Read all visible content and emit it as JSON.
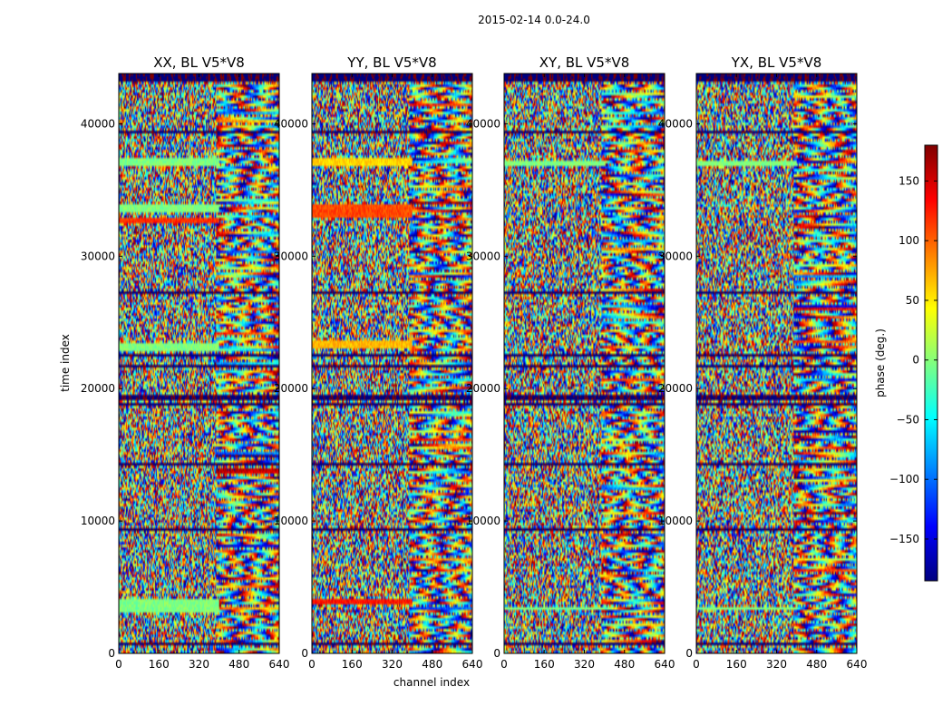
{
  "figure_title": "2015-02-14 0.0-24.0",
  "chart_data": [
    {
      "type": "heatmap",
      "title": "XX, BL V5*V8",
      "xlabel": "",
      "ylabel": "time index",
      "xlim": [
        0,
        640
      ],
      "ylim": [
        0,
        43800
      ],
      "xticks": [
        0,
        160,
        320,
        480,
        640
      ],
      "yticks": [
        0,
        10000,
        20000,
        30000,
        40000
      ],
      "value_range": [
        -180,
        180
      ],
      "seed": 11,
      "flagged_time_bands": [
        [
          43200,
          43800
        ],
        [
          39200,
          39400
        ],
        [
          27100,
          27300
        ],
        [
          22400,
          22700
        ],
        [
          21600,
          21800
        ],
        [
          19200,
          19500
        ],
        [
          18800,
          19000
        ],
        [
          14200,
          14300
        ],
        [
          9300,
          9500
        ],
        [
          700,
          800
        ]
      ],
      "smooth_time_bands": [
        [
          36800,
          37500,
          0
        ],
        [
          33300,
          33900,
          0
        ],
        [
          32500,
          32900,
          120
        ],
        [
          22900,
          23500,
          0
        ],
        [
          3000,
          4200,
          0
        ]
      ]
    },
    {
      "type": "heatmap",
      "title": "YY, BL V5*V8",
      "xlabel": "channel index",
      "ylabel": "",
      "xlim": [
        0,
        640
      ],
      "ylim": [
        0,
        43800
      ],
      "xticks": [
        0,
        160,
        320,
        480,
        640
      ],
      "yticks": [
        0,
        10000,
        20000,
        30000,
        40000
      ],
      "value_range": [
        -180,
        180
      ],
      "seed": 23,
      "flagged_time_bands": [
        [
          43200,
          43800
        ],
        [
          39200,
          39400
        ],
        [
          27100,
          27300
        ],
        [
          22400,
          22700
        ],
        [
          21600,
          21800
        ],
        [
          19200,
          19500
        ],
        [
          18800,
          19000
        ],
        [
          14200,
          14300
        ],
        [
          9300,
          9500
        ],
        [
          700,
          800
        ]
      ],
      "smooth_time_bands": [
        [
          36800,
          37500,
          60
        ],
        [
          33000,
          34000,
          110
        ],
        [
          23000,
          23600,
          70
        ],
        [
          3600,
          4100,
          130
        ]
      ]
    },
    {
      "type": "heatmap",
      "title": "XY, BL V5*V8",
      "xlabel": "",
      "ylabel": "",
      "xlim": [
        0,
        640
      ],
      "ylim": [
        0,
        43800
      ],
      "xticks": [
        0,
        160,
        320,
        480,
        640
      ],
      "yticks": [
        0,
        10000,
        20000,
        30000,
        40000
      ],
      "value_range": [
        -180,
        180
      ],
      "seed": 37,
      "flagged_time_bands": [
        [
          43200,
          43800
        ],
        [
          39200,
          39400
        ],
        [
          27100,
          27300
        ],
        [
          22400,
          22700
        ],
        [
          21600,
          21800
        ],
        [
          19200,
          19500
        ],
        [
          18800,
          19000
        ],
        [
          14200,
          14300
        ],
        [
          9300,
          9500
        ],
        [
          700,
          800
        ]
      ],
      "smooth_time_bands": [
        [
          36800,
          37200,
          0
        ],
        [
          3200,
          3500,
          0
        ]
      ]
    },
    {
      "type": "heatmap",
      "title": "YX, BL V5*V8",
      "xlabel": "",
      "ylabel": "",
      "xlim": [
        0,
        640
      ],
      "ylim": [
        0,
        43800
      ],
      "xticks": [
        0,
        160,
        320,
        480,
        640
      ],
      "yticks": [
        0,
        10000,
        20000,
        30000,
        40000
      ],
      "value_range": [
        -180,
        180
      ],
      "seed": 53,
      "flagged_time_bands": [
        [
          43200,
          43800
        ],
        [
          39200,
          39400
        ],
        [
          27100,
          27300
        ],
        [
          22400,
          22700
        ],
        [
          21600,
          21800
        ],
        [
          19200,
          19500
        ],
        [
          18800,
          19000
        ],
        [
          14200,
          14300
        ],
        [
          9300,
          9500
        ],
        [
          700,
          800
        ]
      ],
      "smooth_time_bands": [
        [
          36800,
          37200,
          0
        ],
        [
          3200,
          3500,
          0
        ]
      ]
    }
  ],
  "colorbar": {
    "label": "phase (deg.)",
    "vmin": -185,
    "vmax": 180,
    "ticks": [
      150,
      100,
      50,
      0,
      -50,
      -100,
      -150
    ],
    "colormap": "jet"
  }
}
